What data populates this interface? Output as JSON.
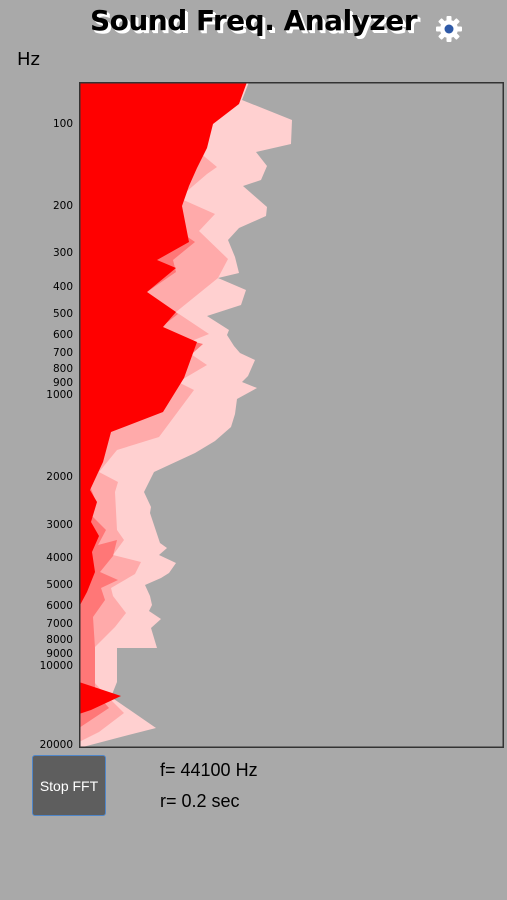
{
  "app": {
    "title": "Sound Freq. Analyzer",
    "settings_icon": "gear-icon"
  },
  "axis": {
    "unit_label": "Hz",
    "scale": "log",
    "tick_labels": [
      "100",
      "200",
      "300",
      "400",
      "500",
      "600",
      "700",
      "800",
      "900",
      "1000",
      "2000",
      "3000",
      "4000",
      "5000",
      "6000",
      "7000",
      "8000",
      "9000",
      "10000",
      "20000"
    ],
    "tick_values": [
      100,
      200,
      300,
      400,
      500,
      600,
      700,
      800,
      900,
      1000,
      2000,
      3000,
      4000,
      5000,
      6000,
      7000,
      8000,
      9000,
      10000,
      20000
    ],
    "range": [
      70,
      20000
    ]
  },
  "controls": {
    "stop_label": "Stop FFT"
  },
  "info": {
    "sample_rate": "f= 44100 Hz",
    "refresh_rate": "r= 0.2 sec"
  },
  "colors": {
    "background": "#a9a9a9",
    "plot_bg": "#a8a8a8",
    "current": "#ff0000",
    "history_1": "#ff7777",
    "history_2": "#ffaaaa",
    "history_3": "#ffd0d0",
    "button_bg": "#5e5e5e",
    "button_border": "#4f86c9"
  }
}
